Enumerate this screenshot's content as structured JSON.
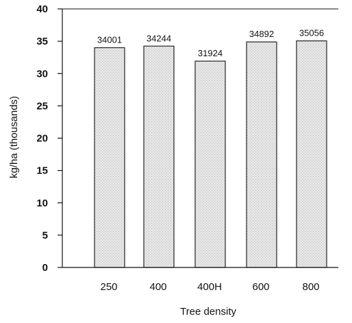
{
  "chart_data": {
    "type": "bar",
    "categories": [
      "250",
      "400",
      "400H",
      "600",
      "800"
    ],
    "values": [
      34.001,
      34.244,
      31.924,
      34.892,
      35.056
    ],
    "data_labels": [
      "34001",
      "34244",
      "31924",
      "34892",
      "35056"
    ],
    "xlabel": "Tree density",
    "ylabel": "kg/ha (thousands)",
    "ylim": [
      0,
      40
    ],
    "yticks": [
      0,
      5,
      10,
      15,
      20,
      25,
      30,
      35,
      40
    ],
    "grid": false,
    "bar_fill": "#e6e6e6",
    "bar_stroke": "#222222"
  }
}
